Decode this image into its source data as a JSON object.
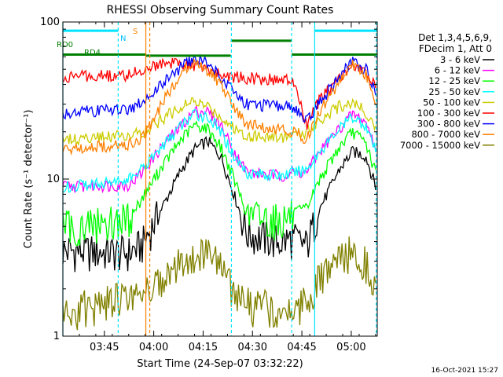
{
  "chart_data": {
    "type": "line",
    "title": "RHESSI Observing Summary Count Rates",
    "xlabel": "Start Time (24-Sep-07 03:32:22)",
    "ylabel": "Count Rate (s⁻¹ detector⁻¹)",
    "x_unit": "minutes since 03:32:22",
    "xlim": [
      0,
      95.5
    ],
    "ylim": [
      1,
      100
    ],
    "y_scale": "log",
    "x_ticks": [
      {
        "label": "03:45",
        "x": 12.6
      },
      {
        "label": "04:00",
        "x": 27.6
      },
      {
        "label": "04:15",
        "x": 42.6
      },
      {
        "label": "04:30",
        "x": 57.6
      },
      {
        "label": "04:45",
        "x": 72.6
      },
      {
        "label": "05:00",
        "x": 87.6
      }
    ],
    "y_ticks": [
      {
        "label": "1",
        "y": 1
      },
      {
        "label": "10",
        "y": 10
      },
      {
        "label": "100",
        "y": 100
      }
    ],
    "legend": {
      "header": [
        "Det 1,3,4,5,6,9,",
        "FDecim 1, Att 0"
      ],
      "placement": "right"
    },
    "series": [
      {
        "name": "3 - 6 keV",
        "color": "#000000",
        "x": [
          0,
          4,
          20,
          24,
          30,
          36,
          40,
          44,
          48,
          52,
          56,
          66,
          70,
          74,
          78,
          84,
          88,
          92,
          95
        ],
        "y": [
          3.5,
          3.5,
          3.4,
          3.8,
          6.5,
          11.5,
          15.5,
          17.5,
          14,
          8,
          4.5,
          4,
          4.2,
          3.8,
          6.5,
          11.5,
          15,
          14,
          9
        ]
      },
      {
        "name": "6 - 12 keV",
        "color": "#ff00ff",
        "x": [
          0,
          4,
          20,
          24,
          30,
          36,
          40,
          44,
          48,
          52,
          56,
          66,
          70,
          74,
          78,
          84,
          88,
          92,
          95
        ],
        "y": [
          9,
          9,
          9.2,
          11,
          16,
          22,
          27,
          27,
          22,
          15,
          11,
          10.5,
          11,
          11,
          15,
          21,
          26,
          23,
          16
        ]
      },
      {
        "name": "12 - 25 keV",
        "color": "#00ff00",
        "x": [
          0,
          4,
          20,
          24,
          30,
          36,
          40,
          44,
          48,
          52,
          56,
          66,
          70,
          74,
          78,
          84,
          88,
          92,
          95
        ],
        "y": [
          5,
          5,
          5.6,
          7.5,
          12,
          18,
          22,
          21,
          16,
          10,
          6,
          5.5,
          6,
          6.5,
          10,
          16,
          20,
          17,
          11
        ]
      },
      {
        "name": "25 - 50 keV",
        "color": "#00ffff",
        "x": [
          0,
          4,
          20,
          24,
          30,
          36,
          40,
          44,
          48,
          52,
          56,
          66,
          70,
          74,
          78,
          84,
          88,
          92,
          95
        ],
        "y": [
          9,
          9,
          10,
          11.5,
          16,
          22,
          26,
          25,
          20,
          14,
          11,
          10.5,
          11,
          11.5,
          15,
          21,
          25,
          22,
          15
        ]
      },
      {
        "name": "50 - 100 keV",
        "color": "#cccc00",
        "x": [
          0,
          4,
          20,
          24,
          30,
          36,
          40,
          44,
          48,
          52,
          56,
          66,
          70,
          74,
          78,
          84,
          88,
          92,
          95
        ],
        "y": [
          18,
          18,
          19,
          20,
          24,
          29,
          31,
          29,
          25,
          21,
          19,
          18.5,
          19,
          20,
          24,
          29,
          31,
          27,
          21
        ]
      },
      {
        "name": "100 - 300 keV",
        "color": "#ff0000",
        "x": [
          0,
          4,
          20,
          24,
          30,
          36,
          40,
          44,
          48,
          52,
          56,
          66,
          70,
          74,
          78,
          84,
          88,
          92,
          95
        ],
        "y": [
          44,
          45,
          46,
          50,
          55,
          54,
          53,
          50,
          46,
          45,
          44,
          43,
          42,
          22,
          32,
          44,
          52,
          48,
          38
        ]
      },
      {
        "name": "300 - 800 keV",
        "color": "#0000ff",
        "x": [
          0,
          4,
          20,
          24,
          30,
          36,
          40,
          44,
          48,
          52,
          56,
          66,
          70,
          74,
          78,
          84,
          88,
          92,
          95
        ],
        "y": [
          26,
          27,
          28,
          31,
          40,
          52,
          58,
          55,
          45,
          36,
          30,
          29,
          29,
          23,
          31,
          45,
          56,
          50,
          36
        ]
      },
      {
        "name": "800 - 7000 keV",
        "color": "#ff8000",
        "x": [
          0,
          4,
          20,
          24,
          30,
          36,
          40,
          44,
          48,
          52,
          56,
          66,
          70,
          74,
          78,
          84,
          88,
          92,
          95
        ],
        "y": [
          15.5,
          16,
          16.5,
          18,
          30,
          48,
          55,
          50,
          40,
          28,
          22,
          21,
          20,
          18,
          27,
          42,
          54,
          46,
          32
        ]
      },
      {
        "name": "7000 - 15000 keV",
        "color": "#808000",
        "x": [
          0,
          4,
          20,
          24,
          30,
          36,
          40,
          44,
          48,
          52,
          56,
          66,
          70,
          74,
          78,
          84,
          88,
          92,
          95
        ],
        "y": [
          1.3,
          1.5,
          1.8,
          2,
          2.2,
          3,
          3.5,
          3.3,
          2.7,
          2,
          1.6,
          1.5,
          1.5,
          1.7,
          2.3,
          3.1,
          3.5,
          3,
          2.2
        ]
      }
    ],
    "annotations": {
      "markers": [
        {
          "label": "RD0",
          "color": "#008000"
        },
        {
          "label": "RD4",
          "color": "#008000"
        },
        {
          "label": "N",
          "color": "#00bfff"
        },
        {
          "label": "S",
          "color": "#ff8000"
        }
      ],
      "flag_segments": [
        {
          "color": "#008000",
          "x": [
            0,
            25.2
          ],
          "y": 62
        },
        {
          "color": "#008000",
          "x": [
            25.2,
            51
          ],
          "y": 61
        },
        {
          "color": "#008000",
          "x": [
            51,
            69.5
          ],
          "y": 76
        },
        {
          "color": "#008000",
          "x": [
            69.5,
            95.5
          ],
          "y": 62
        },
        {
          "color": "#00e5ff",
          "x": [
            0,
            16.8
          ],
          "y": 88
        },
        {
          "color": "#00e5ff",
          "x": [
            76.5,
            95.5
          ],
          "y": 88
        }
      ],
      "vertical_lines": [
        {
          "x": 0,
          "color": "#00e5ff",
          "style": "solid"
        },
        {
          "x": 16.8,
          "color": "#00e5ff",
          "style": "dashed"
        },
        {
          "x": 25.2,
          "color": "#ff8000",
          "style": "solid"
        },
        {
          "x": 26.4,
          "color": "#ff8000",
          "style": "dashed"
        },
        {
          "x": 51.2,
          "color": "#00e5ff",
          "style": "dashed"
        },
        {
          "x": 69.5,
          "color": "#00e5ff",
          "style": "dashed"
        },
        {
          "x": 76.5,
          "color": "#00e5ff",
          "style": "solid"
        },
        {
          "x": 95.2,
          "color": "#00e5ff",
          "style": "dashed"
        }
      ]
    },
    "grid": false
  },
  "footer": {
    "timestamp": "16-Oct-2021 15:27"
  }
}
